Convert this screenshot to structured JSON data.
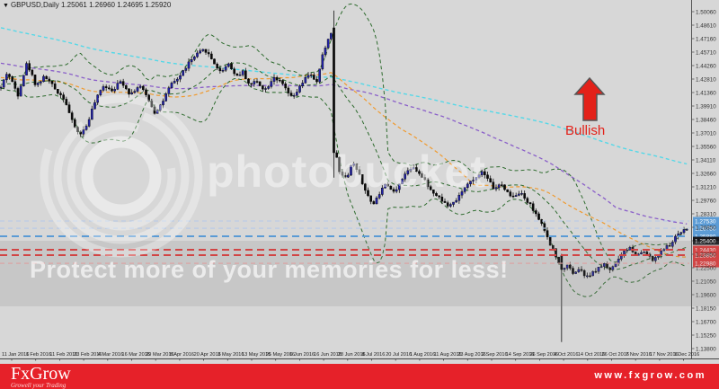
{
  "window": {
    "title": "GBPUSD,Daily 1.25061 1.26960 1.24695 1.25920",
    "dropdown_icon": "triangle-down"
  },
  "annotation": {
    "label": "Bullish",
    "color": "#e32119",
    "arrow": "up-arrow"
  },
  "watermark": {
    "brand": "photobucket",
    "banner_text": "Protect more of your memories for less!"
  },
  "footer": {
    "brand": "FxGrow",
    "tagline": "Growell your Trading",
    "website": "www.fxgrow.com",
    "background": "#e62129"
  },
  "price_axis": {
    "labels": [
      "1.50060",
      "1.48610",
      "1.47160",
      "1.45710",
      "1.44260",
      "1.42810",
      "1.41360",
      "1.39910",
      "1.38460",
      "1.37010",
      "1.35560",
      "1.34110",
      "1.32660",
      "1.31210",
      "1.29760",
      "1.28310",
      "1.26850",
      "1.25400",
      "1.23950",
      "1.22500",
      "1.21050",
      "1.19600",
      "1.18150",
      "1.16700",
      "1.15250",
      "1.13800"
    ]
  },
  "time_axis": {
    "labels": [
      "11 Jan 2016",
      "1 Feb 2016",
      "11 Feb 2016",
      "23 Feb 2016",
      "4 Mar 2016",
      "16 Mar 2016",
      "29 Mar 2016",
      "8 Apr 2016",
      "20 Apr 2016",
      "3 May 2016",
      "13 May 2016",
      "25 May 2016",
      "6 Jun 2016",
      "16 Jun 2016",
      "28 Jun 2016",
      "8 Jul 2016",
      "20 Jul 2016",
      "1 Aug 2016",
      "11 Aug 2016",
      "23 Aug 2016",
      "2 Sep 2016",
      "14 Sep 2016",
      "26 Sep 2016",
      "4 Oct 2016",
      "14 Oct 2016",
      "26 Oct 2016",
      "7 Nov 2016",
      "17 Nov 2016",
      "1 Dec 2016"
    ]
  },
  "chart_data": {
    "type": "candlestick",
    "symbol": "GBPUSD",
    "timeframe": "Daily",
    "title": "GBPUSD Daily 2016",
    "date_range": [
      "11 Jan 2016",
      "1 Dec 2016"
    ],
    "price_range": [
      1.1264,
      1.5132
    ],
    "grid": false,
    "colors": {
      "background": "#d7d7d7",
      "bull_candle": "#2222aa",
      "bear_candle": "#0a0a0a",
      "bollinger": "#2e6b2e",
      "sma50": "#f09a2e",
      "sma100": "#8a5fc9",
      "sma200": "#54d8e8",
      "resistance": "#5b9bd5",
      "resistance_faint": "#b4c9e8",
      "support": "#e23a3a",
      "support_faint": "#f0a8a8",
      "current_price_box": "#16161a"
    },
    "overlays": [
      {
        "name": "bollinger-bands",
        "period": 20,
        "deviation": 2,
        "color": "#2e6b2e"
      },
      {
        "name": "sma-50",
        "period": 50,
        "color": "#f09a2e"
      },
      {
        "name": "sma-100",
        "period": 100,
        "color": "#8a5fc9"
      },
      {
        "name": "sma-200",
        "period": 200,
        "color": "#54d8e8"
      }
    ],
    "levels": {
      "resistance": [
        {
          "label": "1.27530",
          "price": 1.2753,
          "strong": false
        },
        {
          "label": "1.26750",
          "price": 1.2675,
          "strong": false
        },
        {
          "label": "1.25880",
          "price": 1.2588,
          "strong": true
        }
      ],
      "support": [
        {
          "label": "1.24430",
          "price": 1.2443,
          "strong": true
        },
        {
          "label": "1.23850",
          "price": 1.2385,
          "strong": true
        },
        {
          "label": "1.22980",
          "price": 1.2298,
          "strong": false
        }
      ],
      "current": {
        "label": "1.25400",
        "price": 1.254
      }
    },
    "close_path_anchors": [
      [
        0,
        1.4165
      ],
      [
        8,
        1.4358
      ],
      [
        20,
        1.4116
      ],
      [
        30,
        1.4455
      ],
      [
        40,
        1.4213
      ],
      [
        50,
        1.431
      ],
      [
        62,
        1.4165
      ],
      [
        72,
        1.4068
      ],
      [
        80,
        1.3826
      ],
      [
        88,
        1.3681
      ],
      [
        95,
        1.3749
      ],
      [
        105,
        1.402
      ],
      [
        115,
        1.4213
      ],
      [
        125,
        1.4165
      ],
      [
        135,
        1.4261
      ],
      [
        145,
        1.4116
      ],
      [
        155,
        1.4213
      ],
      [
        165,
        1.4068
      ],
      [
        172,
        1.3923
      ],
      [
        180,
        1.402
      ],
      [
        190,
        1.4213
      ],
      [
        200,
        1.431
      ],
      [
        210,
        1.4455
      ],
      [
        220,
        1.4551
      ],
      [
        228,
        1.46
      ],
      [
        235,
        1.4503
      ],
      [
        245,
        1.4358
      ],
      [
        255,
        1.4455
      ],
      [
        262,
        1.431
      ],
      [
        270,
        1.4358
      ],
      [
        278,
        1.4213
      ],
      [
        285,
        1.4261
      ],
      [
        295,
        1.4165
      ],
      [
        305,
        1.431
      ],
      [
        315,
        1.4213
      ],
      [
        325,
        1.4068
      ],
      [
        335,
        1.4213
      ],
      [
        345,
        1.4358
      ],
      [
        352,
        1.4213
      ],
      [
        358,
        1.4503
      ],
      [
        365,
        1.4706
      ],
      [
        370,
        1.4832
      ],
      [
        373,
        1.3488
      ],
      [
        378,
        1.3294
      ],
      [
        385,
        1.3198
      ],
      [
        392,
        1.3391
      ],
      [
        400,
        1.3246
      ],
      [
        408,
        1.3053
      ],
      [
        415,
        1.2908
      ],
      [
        422,
        1.3053
      ],
      [
        430,
        1.3149
      ],
      [
        437,
        1.3053
      ],
      [
        445,
        1.3149
      ],
      [
        452,
        1.3294
      ],
      [
        460,
        1.3343
      ],
      [
        468,
        1.3246
      ],
      [
        475,
        1.3149
      ],
      [
        482,
        1.3053
      ],
      [
        490,
        1.3004
      ],
      [
        498,
        1.2908
      ],
      [
        505,
        1.2956
      ],
      [
        512,
        1.3053
      ],
      [
        520,
        1.3149
      ],
      [
        528,
        1.3198
      ],
      [
        535,
        1.3294
      ],
      [
        542,
        1.3198
      ],
      [
        550,
        1.3101
      ],
      [
        558,
        1.3149
      ],
      [
        565,
        1.3053
      ],
      [
        572,
        1.3004
      ],
      [
        580,
        1.3053
      ],
      [
        587,
        1.2956
      ],
      [
        595,
        1.2859
      ],
      [
        600,
        1.2763
      ],
      [
        607,
        1.2618
      ],
      [
        614,
        1.2473
      ],
      [
        620,
        1.2328
      ],
      [
        625,
        1.2231
      ],
      [
        632,
        1.2279
      ],
      [
        638,
        1.2182
      ],
      [
        645,
        1.2231
      ],
      [
        652,
        1.2134
      ],
      [
        658,
        1.2182
      ],
      [
        665,
        1.2231
      ],
      [
        672,
        1.2279
      ],
      [
        680,
        1.2231
      ],
      [
        687,
        1.2328
      ],
      [
        695,
        1.2424
      ],
      [
        702,
        1.2473
      ],
      [
        708,
        1.2376
      ],
      [
        715,
        1.2424
      ],
      [
        722,
        1.2376
      ],
      [
        728,
        1.2328
      ],
      [
        735,
        1.2424
      ],
      [
        742,
        1.2473
      ],
      [
        748,
        1.2521
      ],
      [
        755,
        1.2618
      ],
      [
        760,
        1.2666
      ]
    ],
    "special_candles": [
      {
        "index": 117,
        "event": "brexit-crash",
        "o": 1.4832,
        "h": 1.5018,
        "l": 1.322,
        "c": 1.3488
      },
      {
        "index": 197,
        "event": "flash-crash",
        "o": 1.238,
        "h": 1.24,
        "l": 1.145,
        "c": 1.2231
      }
    ]
  }
}
